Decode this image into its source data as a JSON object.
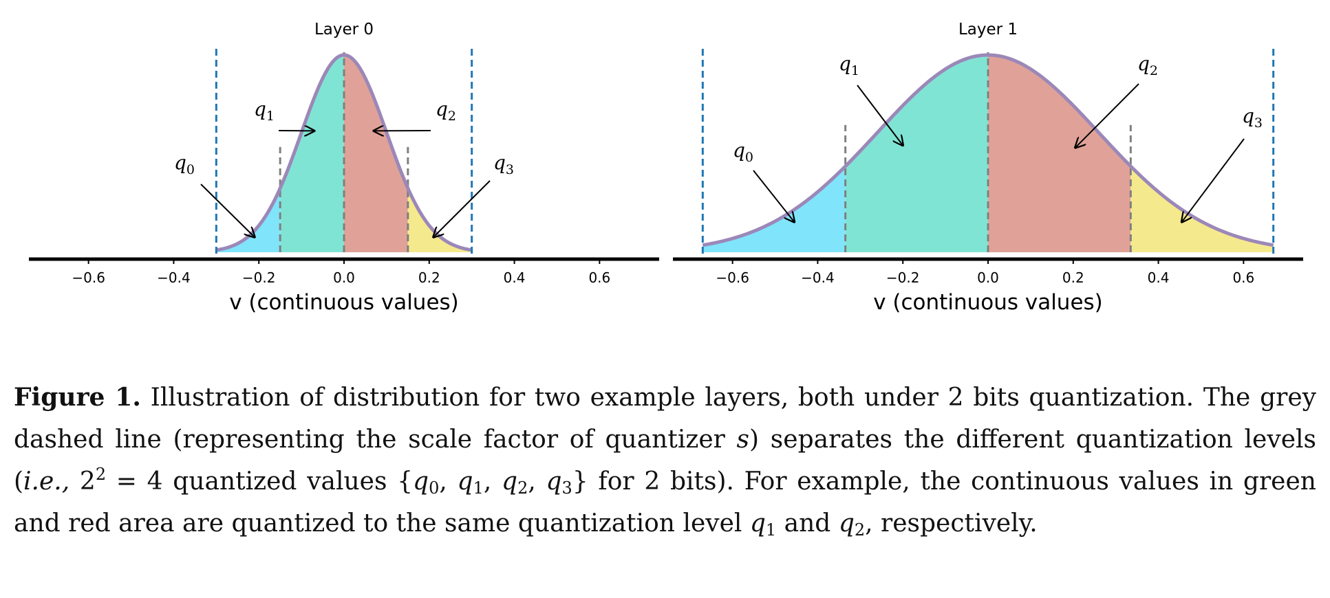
{
  "chart_data": [
    {
      "type": "area",
      "title": "Layer 0",
      "xlabel": "v (continuous values)",
      "xlim": [
        -0.74,
        0.74
      ],
      "xticks": [
        -0.6,
        -0.4,
        -0.2,
        0.0,
        0.2,
        0.4,
        0.6
      ],
      "xtick_labels": [
        "−0.6",
        "−0.4",
        "−0.2",
        "0.0",
        "0.2",
        "0.4",
        "0.6"
      ],
      "distribution": {
        "kind": "gaussian",
        "mean": 0.0,
        "sigma": 0.1,
        "range": [
          -0.3,
          0.3
        ]
      },
      "range_bounds": [
        -0.3,
        0.3
      ],
      "scale_bounds": [
        -0.15,
        0.0,
        0.15
      ],
      "regions": [
        {
          "label": "q",
          "subscript": "0",
          "from": -0.3,
          "to": -0.15,
          "color": "#80e4fb",
          "arrow_to": -0.21
        },
        {
          "label": "q",
          "subscript": "1",
          "from": -0.15,
          "to": 0.0,
          "color": "#80e4d4",
          "arrow_to": -0.07
        },
        {
          "label": "q",
          "subscript": "2",
          "from": 0.0,
          "to": 0.15,
          "color": "#e0a298",
          "arrow_to": 0.07
        },
        {
          "label": "q",
          "subscript": "3",
          "from": 0.15,
          "to": 0.3,
          "color": "#f5e98e",
          "arrow_to": 0.21
        }
      ]
    },
    {
      "type": "area",
      "title": "Layer 1",
      "xlabel": "v (continuous values)",
      "xlim": [
        -0.74,
        0.74
      ],
      "xticks": [
        -0.6,
        -0.4,
        -0.2,
        0.0,
        0.2,
        0.4,
        0.6
      ],
      "xtick_labels": [
        "−0.6",
        "−0.4",
        "−0.2",
        "0.0",
        "0.2",
        "0.4",
        "0.6"
      ],
      "distribution": {
        "kind": "gaussian",
        "mean": 0.0,
        "sigma": 0.26,
        "range": [
          -0.67,
          0.67
        ]
      },
      "range_bounds": [
        -0.67,
        0.67
      ],
      "scale_bounds": [
        -0.335,
        0.0,
        0.335
      ],
      "regions": [
        {
          "label": "q",
          "subscript": "0",
          "from": -0.67,
          "to": -0.335,
          "color": "#80e4fb",
          "arrow_to": -0.455
        },
        {
          "label": "q",
          "subscript": "1",
          "from": -0.335,
          "to": 0.0,
          "color": "#80e4d4",
          "arrow_to": -0.2
        },
        {
          "label": "q",
          "subscript": "2",
          "from": 0.0,
          "to": 0.335,
          "color": "#e0a298",
          "arrow_to": 0.205
        },
        {
          "label": "q",
          "subscript": "3",
          "from": 0.335,
          "to": 0.67,
          "color": "#f5e98e",
          "arrow_to": 0.455
        }
      ]
    }
  ],
  "colors": {
    "curve": "#9b88b8",
    "range_line": "#1f77b4",
    "scale_line": "#7f7f7f",
    "axis": "#000000"
  },
  "caption": {
    "label": "Figure 1.",
    "t1": "Illustration of distribution for two example layers, both under 2 bits quantization. The grey dashed line (representing the scale factor of quantizer",
    "s": "s",
    "t2": ") separates the different quantization levels (",
    "ie": "i.e.,",
    "t3": "2",
    "exp": "2",
    "t4": "= 4 quantized values {",
    "q": "q",
    "sub0": "0",
    "sub1": "1",
    "sub2": "2",
    "sub3": "3",
    "comma": ",",
    "t5": "} for 2 bits). For example, the continuous values in green and red area are quantized to the same quantization level",
    "and": "and",
    "t6": ", respectively."
  }
}
